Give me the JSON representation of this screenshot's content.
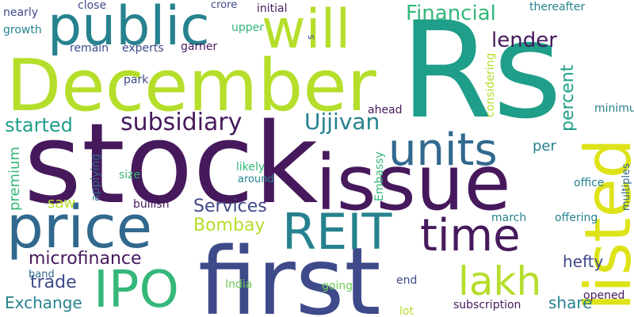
{
  "palette": {
    "background": "#ffffff",
    "dark_purple": "#46195c",
    "indigo": "#3e4a89",
    "blue": "#31688e",
    "teal": "#26828e",
    "green_teal": "#1f9e89",
    "green": "#35b779",
    "light_green": "#6ece58",
    "lime": "#b5de2b",
    "yellow": "#dde318"
  },
  "words": {
    "rs": "Rs",
    "december": "December",
    "stock": "stock",
    "issue": "issue",
    "first": "first",
    "price": "price",
    "public": "public",
    "will": "will",
    "listed": "listed",
    "units": "units",
    "reit": "REIT",
    "time": "time",
    "ipo": "IPO",
    "lakh": "lakh",
    "financial": "Financial",
    "lender": "lender",
    "subsidiary": "subsidiary",
    "started": "started",
    "ujjivan": "Ujjivan",
    "percent": "percent",
    "microfinance": "microfinance",
    "services": "Services",
    "bombay": "Bombay",
    "trade": "trade",
    "exchange": "Exchange",
    "hefty": "hefty",
    "share": "share",
    "premium": "premium",
    "per": "per",
    "saw": "saw",
    "nearly": "nearly",
    "growth": "growth",
    "close": "close",
    "crore": "crore",
    "initial": "initial",
    "thereafter": "thereafter",
    "remain": "remain",
    "experts": "experts",
    "garner": "garner",
    "upper": "upper",
    "park": "park",
    "considering": "considering",
    "minimum": "minimum",
    "ahead": "ahead",
    "office": "office",
    "likely": "likely",
    "around": "around",
    "size": "size",
    "applying": "applying",
    "embassy": "Embassy",
    "multiples": "multiples",
    "march": "march",
    "offering": "offering",
    "bullish": "bullish",
    "band": "band",
    "india": "India",
    "end": "end",
    "going": "going",
    "lot": "lot",
    "subscription": "subscription",
    "opened": "opened",
    "s": "s"
  }
}
